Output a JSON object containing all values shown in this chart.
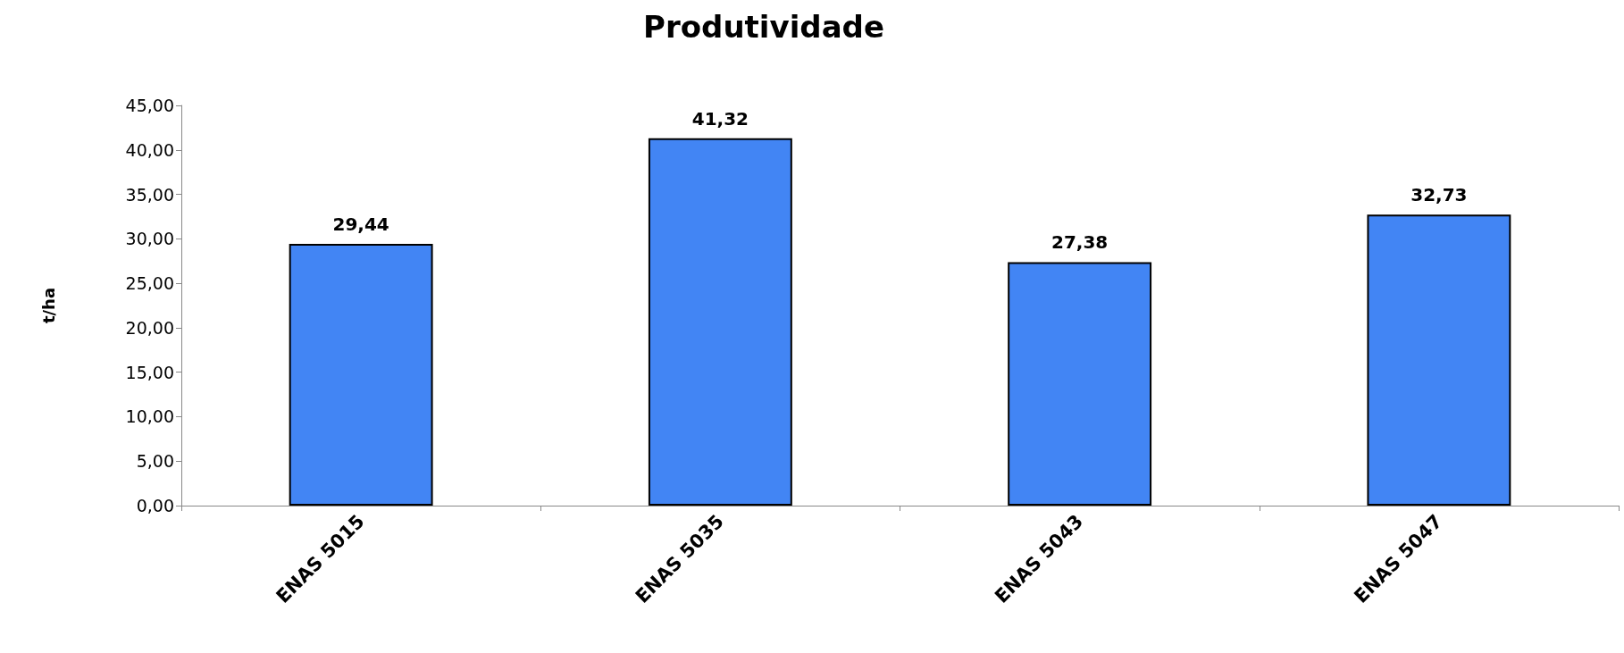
{
  "chart_data": {
    "type": "bar",
    "title": "Produtividade",
    "ylabel": "t/ha",
    "categories": [
      "ENAS 5015",
      "ENAS 5035",
      "ENAS 5043",
      "ENAS 5047"
    ],
    "values": [
      29.44,
      41.32,
      27.38,
      32.73
    ],
    "value_labels": [
      "29,44",
      "41,32",
      "27,38",
      "32,73"
    ],
    "color": "#4285f4",
    "ylim": [
      0,
      45
    ],
    "yticks": [
      {
        "value": 0,
        "label": "0,00"
      },
      {
        "value": 5,
        "label": "5,00"
      },
      {
        "value": 10,
        "label": "10,00"
      },
      {
        "value": 15,
        "label": "15,00"
      },
      {
        "value": 20,
        "label": "20,00"
      },
      {
        "value": 25,
        "label": "25,00"
      },
      {
        "value": 30,
        "label": "30,00"
      },
      {
        "value": 35,
        "label": "35,00"
      },
      {
        "value": 40,
        "label": "40,00"
      },
      {
        "value": 45,
        "label": "45,00"
      }
    ],
    "grid": false
  }
}
